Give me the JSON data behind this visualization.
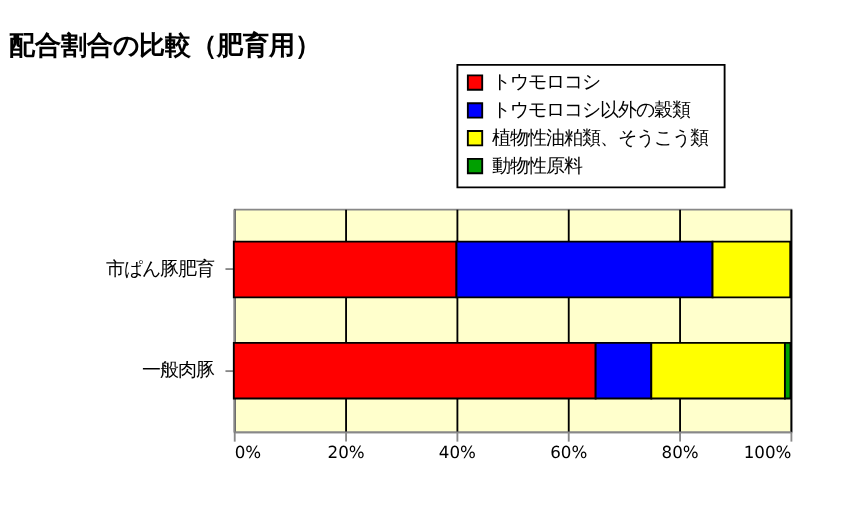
{
  "chart_data": {
    "type": "bar",
    "orientation": "horizontal",
    "stacked": true,
    "title": "配合割合の比較（肥育用）",
    "categories": [
      "市ぱん豚肥育",
      "一般肉豚"
    ],
    "series": [
      {
        "name": "トウモロコシ",
        "color": "#ff0000",
        "values": [
          40,
          65
        ]
      },
      {
        "name": "トウモロコシ以外の穀類",
        "color": "#0000ff",
        "values": [
          46,
          10
        ]
      },
      {
        "name": "植物性油粕類、そうこう類",
        "color": "#ffff00",
        "values": [
          14,
          24
        ]
      },
      {
        "name": "動物性原料",
        "color": "#00a000",
        "values": [
          0,
          1
        ]
      }
    ],
    "xlim": [
      0,
      100
    ],
    "xticks": [
      {
        "value": 0,
        "label": "0%"
      },
      {
        "value": 20,
        "label": "20%"
      },
      {
        "value": 40,
        "label": "40%"
      },
      {
        "value": 60,
        "label": "60%"
      },
      {
        "value": 80,
        "label": "80%"
      },
      {
        "value": 100,
        "label": "100%"
      }
    ],
    "grid": "x",
    "legend": "top right"
  }
}
